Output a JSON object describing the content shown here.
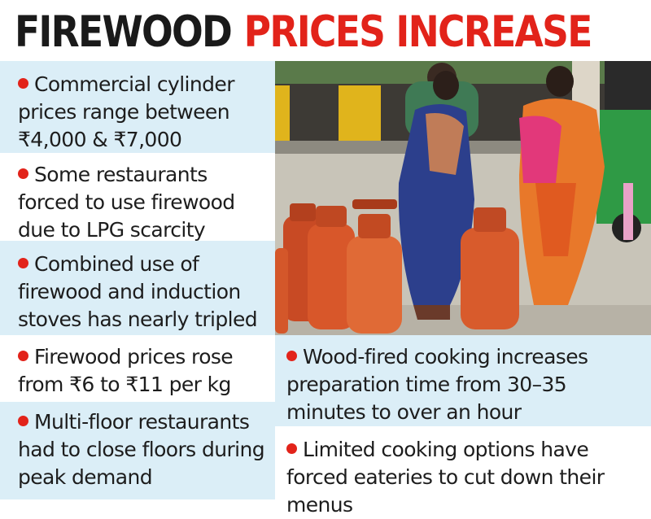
{
  "headline": {
    "word1": "FIREWOOD",
    "word2": "PRICES INCREASE"
  },
  "points": [
    "Commercial cylinder prices range between ₹4,000 & ₹7,000",
    "Some restaurants forced to use firewood due to LPG scarcity",
    "Combined use of firewood and induction stoves has nearly tripled costs",
    "Firewood prices rose from ₹6 to ₹11 per kg",
    "Multi-floor restaurants had to close floors during peak demand",
    "Wood-fired cooking increases preparation time from 30–35 minutes to over an hour",
    "Limited cooking options have forced eateries to cut down their menus"
  ],
  "photo": {
    "subject": "women-with-lpg-cylinders"
  },
  "colors": {
    "headline_black": "#1a1a1a",
    "headline_red": "#e2231a",
    "bullet": "#e2231a",
    "panel_blue": "#dbeef7",
    "cylinder": "#d8572a"
  }
}
